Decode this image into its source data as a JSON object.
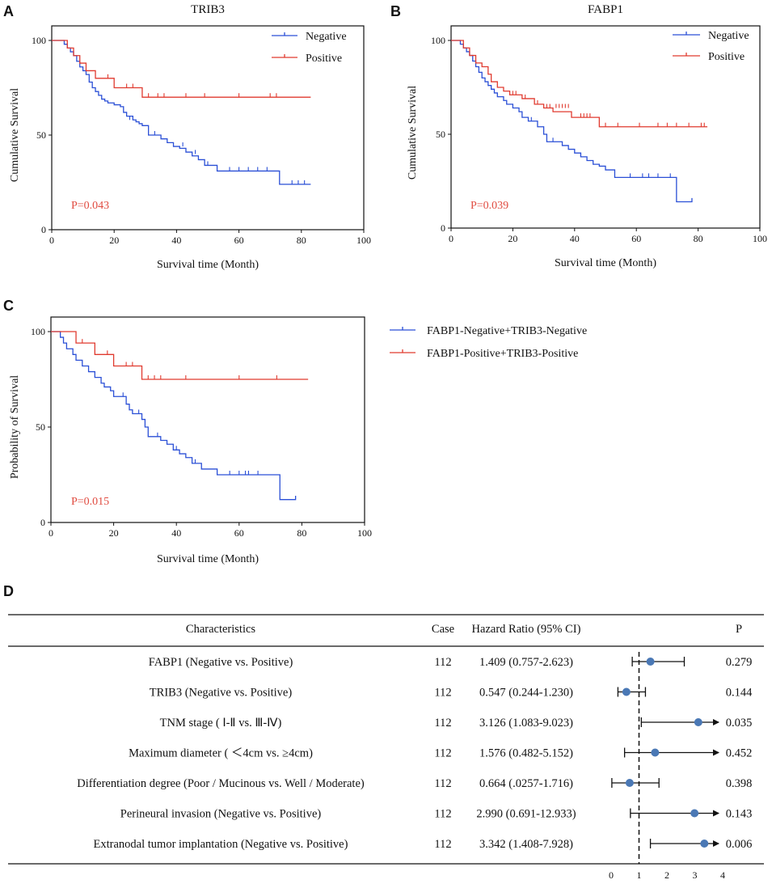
{
  "colors": {
    "negative": "#2a4fd6",
    "positive": "#e03a2f",
    "pvalue": "#e04b40",
    "dot": "#4a78b5",
    "sig": "#e01e1e"
  },
  "chart_data": [
    {
      "type": "line",
      "panel": "A",
      "title": "TRIB3",
      "xlabel": "Survival time (Month)",
      "ylabel": "Cumulative Survival",
      "xlim": [
        0,
        100
      ],
      "ylim": [
        0,
        100
      ],
      "xticks": [
        "0",
        "20",
        "40",
        "60",
        "80",
        "100"
      ],
      "yticks": [
        "0",
        "50",
        "100"
      ],
      "pvalue": "P=0.043",
      "legend": [
        "Negative",
        "Positive"
      ],
      "series": [
        {
          "name": "Negative",
          "color": "negative",
          "steps": [
            [
              0,
              100
            ],
            [
              4,
              98
            ],
            [
              5,
              96
            ],
            [
              6,
              94
            ],
            [
              7,
              92
            ],
            [
              8,
              89
            ],
            [
              9,
              86
            ],
            [
              10,
              84
            ],
            [
              11,
              82
            ],
            [
              12,
              78
            ],
            [
              13,
              75
            ],
            [
              14,
              73
            ],
            [
              15,
              71
            ],
            [
              16,
              69
            ],
            [
              17,
              68
            ],
            [
              18,
              67
            ],
            [
              20,
              66
            ],
            [
              22,
              65
            ],
            [
              23,
              62
            ],
            [
              24,
              60
            ],
            [
              26,
              58
            ],
            [
              27,
              57
            ],
            [
              28,
              56
            ],
            [
              29,
              55
            ],
            [
              31,
              50
            ],
            [
              35,
              48
            ],
            [
              37,
              46
            ],
            [
              39,
              44
            ],
            [
              41,
              43
            ],
            [
              43,
              41
            ],
            [
              45,
              39
            ],
            [
              47,
              37
            ],
            [
              49,
              34
            ],
            [
              53,
              31
            ],
            [
              73,
              24
            ],
            [
              83,
              24
            ]
          ],
          "censors": [
            [
              25,
              58
            ],
            [
              33,
              50
            ],
            [
              42,
              44
            ],
            [
              46,
              40
            ],
            [
              50,
              34
            ],
            [
              57,
              31
            ],
            [
              60,
              31
            ],
            [
              63,
              31
            ],
            [
              66,
              31
            ],
            [
              69,
              31
            ],
            [
              77,
              24
            ],
            [
              79,
              24
            ],
            [
              81,
              24
            ]
          ]
        },
        {
          "name": "Positive",
          "color": "positive",
          "steps": [
            [
              0,
              100
            ],
            [
              5,
              96
            ],
            [
              7,
              92
            ],
            [
              9,
              88
            ],
            [
              11,
              84
            ],
            [
              14,
              80
            ],
            [
              20,
              75
            ],
            [
              29,
              70
            ],
            [
              83,
              70
            ]
          ],
          "censors": [
            [
              18,
              80
            ],
            [
              24,
              75
            ],
            [
              26,
              75
            ],
            [
              31,
              70
            ],
            [
              34,
              70
            ],
            [
              36,
              70
            ],
            [
              43,
              70
            ],
            [
              49,
              70
            ],
            [
              60,
              70
            ],
            [
              70,
              70
            ],
            [
              72,
              70
            ]
          ]
        }
      ]
    },
    {
      "type": "line",
      "panel": "B",
      "title": "FABP1",
      "xlabel": "Survival time (Month)",
      "ylabel": "Cumulative Survival",
      "xlim": [
        0,
        100
      ],
      "ylim": [
        0,
        100
      ],
      "xticks": [
        "0",
        "20",
        "40",
        "60",
        "80",
        "100"
      ],
      "yticks": [
        "0",
        "50",
        "100"
      ],
      "pvalue": "P=0.039",
      "legend": [
        "Negative",
        "Positive"
      ],
      "series": [
        {
          "name": "Negative",
          "color": "negative",
          "steps": [
            [
              0,
              100
            ],
            [
              3,
              98
            ],
            [
              4,
              96
            ],
            [
              5,
              94
            ],
            [
              6,
              92
            ],
            [
              7,
              89
            ],
            [
              8,
              86
            ],
            [
              9,
              83
            ],
            [
              10,
              80
            ],
            [
              11,
              78
            ],
            [
              12,
              76
            ],
            [
              13,
              74
            ],
            [
              14,
              72
            ],
            [
              15,
              70
            ],
            [
              17,
              68
            ],
            [
              18,
              66
            ],
            [
              20,
              64
            ],
            [
              22,
              62
            ],
            [
              23,
              59
            ],
            [
              25,
              57
            ],
            [
              28,
              54
            ],
            [
              30,
              50
            ],
            [
              31,
              46
            ],
            [
              36,
              44
            ],
            [
              38,
              42
            ],
            [
              40,
              40
            ],
            [
              42,
              38
            ],
            [
              44,
              36
            ],
            [
              46,
              34
            ],
            [
              48,
              33
            ],
            [
              50,
              31
            ],
            [
              53,
              27
            ],
            [
              73,
              14
            ],
            [
              78,
              16
            ]
          ],
          "censors": [
            [
              26,
              57
            ],
            [
              33,
              46
            ],
            [
              42,
              38
            ],
            [
              58,
              27
            ],
            [
              62,
              27
            ],
            [
              64,
              27
            ],
            [
              67,
              27
            ],
            [
              71,
              27
            ]
          ]
        },
        {
          "name": "Positive",
          "color": "positive",
          "steps": [
            [
              0,
              100
            ],
            [
              4,
              96
            ],
            [
              6,
              92
            ],
            [
              8,
              88
            ],
            [
              10,
              86
            ],
            [
              12,
              82
            ],
            [
              13,
              78
            ],
            [
              15,
              75
            ],
            [
              17,
              73
            ],
            [
              19,
              71
            ],
            [
              23,
              69
            ],
            [
              27,
              66
            ],
            [
              30,
              64
            ],
            [
              33,
              62
            ],
            [
              39,
              59
            ],
            [
              48,
              54
            ],
            [
              83,
              54
            ]
          ],
          "censors": [
            [
              20,
              71
            ],
            [
              21,
              71
            ],
            [
              24,
              69
            ],
            [
              28,
              66
            ],
            [
              31,
              64
            ],
            [
              32,
              64
            ],
            [
              34,
              64
            ],
            [
              35,
              64
            ],
            [
              36,
              64
            ],
            [
              37,
              64
            ],
            [
              38,
              64
            ],
            [
              42,
              59
            ],
            [
              43,
              59
            ],
            [
              44,
              59
            ],
            [
              45,
              59
            ],
            [
              50,
              54
            ],
            [
              54,
              54
            ],
            [
              61,
              54
            ],
            [
              67,
              54
            ],
            [
              70,
              54
            ],
            [
              73,
              54
            ],
            [
              77,
              54
            ],
            [
              81,
              54
            ],
            [
              82,
              54
            ]
          ]
        }
      ]
    },
    {
      "type": "line",
      "panel": "C",
      "xlabel": "Survival time (Month)",
      "ylabel": "Probability of Survival",
      "xlim": [
        0,
        100
      ],
      "ylim": [
        0,
        100
      ],
      "xticks": [
        "0",
        "20",
        "40",
        "60",
        "80",
        "100"
      ],
      "yticks": [
        "0",
        "50",
        "100"
      ],
      "pvalue": "P=0.015",
      "legend": [
        "FABP1-Negative+TRIB3-Negative",
        "FABP1-Positive+TRIB3-Positive"
      ],
      "series": [
        {
          "name": "FABP1-Negative+TRIB3-Negative",
          "color": "negative",
          "steps": [
            [
              0,
              100
            ],
            [
              3,
              97
            ],
            [
              4,
              94
            ],
            [
              5,
              91
            ],
            [
              7,
              88
            ],
            [
              8,
              85
            ],
            [
              10,
              82
            ],
            [
              12,
              79
            ],
            [
              14,
              76
            ],
            [
              16,
              73
            ],
            [
              17,
              71
            ],
            [
              19,
              69
            ],
            [
              20,
              66
            ],
            [
              22,
              66
            ],
            [
              24,
              62
            ],
            [
              25,
              59
            ],
            [
              26,
              57
            ],
            [
              29,
              54
            ],
            [
              30,
              50
            ],
            [
              31,
              45
            ],
            [
              35,
              43
            ],
            [
              37,
              41
            ],
            [
              39,
              38
            ],
            [
              41,
              36
            ],
            [
              43,
              34
            ],
            [
              45,
              31
            ],
            [
              48,
              28
            ],
            [
              53,
              25
            ],
            [
              73,
              12
            ],
            [
              78,
              14
            ]
          ],
          "censors": [
            [
              23,
              66
            ],
            [
              28,
              57
            ],
            [
              34,
              45
            ],
            [
              40,
              38
            ],
            [
              46,
              31
            ],
            [
              57,
              25
            ],
            [
              60,
              25
            ],
            [
              62,
              25
            ],
            [
              63,
              25
            ],
            [
              66,
              25
            ]
          ]
        },
        {
          "name": "FABP1-Positive+TRIB3-Positive",
          "color": "positive",
          "steps": [
            [
              0,
              100
            ],
            [
              8,
              94
            ],
            [
              14,
              88
            ],
            [
              20,
              82
            ],
            [
              29,
              75
            ],
            [
              82,
              75
            ]
          ],
          "censors": [
            [
              10,
              94
            ],
            [
              18,
              88
            ],
            [
              24,
              82
            ],
            [
              26,
              82
            ],
            [
              31,
              75
            ],
            [
              33,
              75
            ],
            [
              35,
              75
            ],
            [
              43,
              75
            ],
            [
              60,
              75
            ],
            [
              72,
              75
            ]
          ]
        }
      ]
    },
    {
      "type": "table",
      "panel": "D",
      "subtype": "forest_plot",
      "columns": [
        "Characteristics",
        "Case",
        "Hazard Ratio (95% CI)",
        "P"
      ],
      "axis_ticks": [
        "0",
        "1",
        "2",
        "3",
        "4"
      ],
      "axis_range": [
        0,
        4
      ],
      "reference_line": 1,
      "rows": [
        {
          "label": "FABP1 (Negative vs. Positive)",
          "case": "112",
          "hr": "1.409 (0.757-2.623)",
          "p": "0.279",
          "sig": false,
          "est": 1.409,
          "lo": 0.757,
          "hi": 2.623,
          "arrow": false
        },
        {
          "label": "TRIB3 (Negative vs. Positive)",
          "case": "112",
          "hr": "0.547 (0.244-1.230)",
          "p": "0.144",
          "sig": false,
          "est": 0.547,
          "lo": 0.244,
          "hi": 1.23,
          "arrow": false
        },
        {
          "label": "TNM stage ( Ⅰ-Ⅱ  vs. Ⅲ-Ⅳ)",
          "case": "112",
          "hr": "3.126 (1.083-9.023)",
          "p": "0.035",
          "sig": true,
          "est": 3.126,
          "lo": 1.083,
          "hi": 9.023,
          "arrow": true
        },
        {
          "label": "Maximum diameter ( ＜4cm vs. ≥4cm)",
          "case": "112",
          "hr": "1.576 (0.482-5.152)",
          "p": "0.452",
          "sig": false,
          "est": 1.576,
          "lo": 0.482,
          "hi": 5.152,
          "arrow": true
        },
        {
          "label": "Differentiation degree (Poor / Mucinous vs. Well / Moderate)",
          "case": "112",
          "hr": "0.664 (.0257-1.716)",
          "p": "0.398",
          "sig": false,
          "est": 0.664,
          "lo": 0.0257,
          "hi": 1.716,
          "arrow": false
        },
        {
          "label": "Perineural invasion (Negative vs. Positive)",
          "case": "112",
          "hr": "2.990 (0.691-12.933)",
          "p": "0.143",
          "sig": false,
          "est": 2.99,
          "lo": 0.691,
          "hi": 12.933,
          "arrow": true
        },
        {
          "label": "Extranodal tumor implantation (Negative vs. Positive)",
          "case": "112",
          "hr": "3.342 (1.408-7.928)",
          "p": "0.006",
          "sig": true,
          "est": 3.342,
          "lo": 1.408,
          "hi": 7.928,
          "arrow": true
        }
      ]
    }
  ]
}
